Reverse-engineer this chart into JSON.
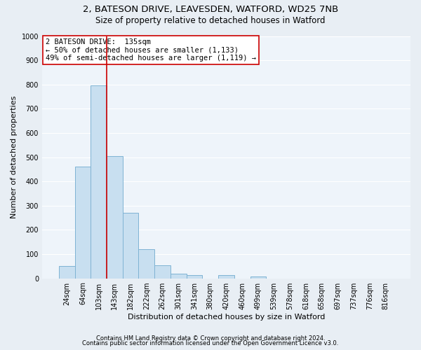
{
  "title1": "2, BATESON DRIVE, LEAVESDEN, WATFORD, WD25 7NB",
  "title2": "Size of property relative to detached houses in Watford",
  "xlabel": "Distribution of detached houses by size in Watford",
  "ylabel": "Number of detached properties",
  "bar_labels": [
    "24sqm",
    "64sqm",
    "103sqm",
    "143sqm",
    "182sqm",
    "222sqm",
    "262sqm",
    "301sqm",
    "341sqm",
    "380sqm",
    "420sqm",
    "460sqm",
    "499sqm",
    "539sqm",
    "578sqm",
    "618sqm",
    "658sqm",
    "697sqm",
    "737sqm",
    "776sqm",
    "816sqm"
  ],
  "bar_values": [
    50,
    460,
    795,
    505,
    270,
    120,
    55,
    20,
    13,
    0,
    12,
    0,
    7,
    0,
    0,
    0,
    0,
    0,
    0,
    0,
    0
  ],
  "bar_color": "#C8DFF0",
  "bar_edge_color": "#7FB3D3",
  "vline_color": "#CC0000",
  "annotation_text": "2 BATESON DRIVE:  135sqm\n← 50% of detached houses are smaller (1,133)\n49% of semi-detached houses are larger (1,119) →",
  "annotation_box_color": "#FFFFFF",
  "annotation_box_edge_color": "#CC0000",
  "ylim": [
    0,
    1000
  ],
  "yticks": [
    0,
    100,
    200,
    300,
    400,
    500,
    600,
    700,
    800,
    900,
    1000
  ],
  "footnote1": "Contains HM Land Registry data © Crown copyright and database right 2024.",
  "footnote2": "Contains public sector information licensed under the Open Government Licence v3.0.",
  "bg_color": "#E8EEF4",
  "plot_bg_color": "#EEF4FA",
  "grid_color": "#FFFFFF",
  "title_fontsize": 9.5,
  "subtitle_fontsize": 8.5,
  "annotation_fontsize": 7.5,
  "axis_label_fontsize": 8,
  "tick_fontsize": 7,
  "footnote_fontsize": 6
}
